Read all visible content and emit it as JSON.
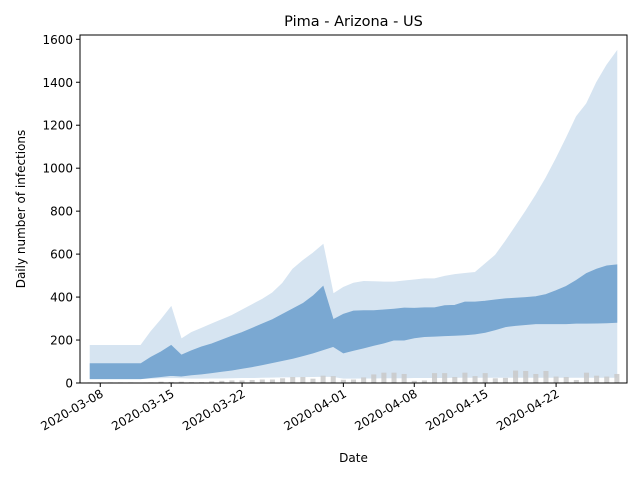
{
  "chart_data": {
    "type": "area",
    "title": "Pima - Arizona - US",
    "xlabel": "Date",
    "ylabel": "Daily number of infections",
    "ylim": [
      0,
      1620
    ],
    "yticks": [
      0,
      200,
      400,
      600,
      800,
      1000,
      1200,
      1400,
      1600
    ],
    "xlim": [
      "2020-03-06",
      "2020-04-29"
    ],
    "xticks": [
      "2020-03-08",
      "2020-03-15",
      "2020-03-22",
      "2020-04-01",
      "2020-04-08",
      "2020-04-15",
      "2020-04-22"
    ],
    "dates": [
      "2020-03-07",
      "2020-03-08",
      "2020-03-09",
      "2020-03-10",
      "2020-03-11",
      "2020-03-12",
      "2020-03-13",
      "2020-03-14",
      "2020-03-15",
      "2020-03-16",
      "2020-03-17",
      "2020-03-18",
      "2020-03-19",
      "2020-03-20",
      "2020-03-21",
      "2020-03-22",
      "2020-03-23",
      "2020-03-24",
      "2020-03-25",
      "2020-03-26",
      "2020-03-27",
      "2020-03-28",
      "2020-03-29",
      "2020-03-30",
      "2020-03-31",
      "2020-04-01",
      "2020-04-02",
      "2020-04-03",
      "2020-04-04",
      "2020-04-05",
      "2020-04-06",
      "2020-04-07",
      "2020-04-08",
      "2020-04-09",
      "2020-04-10",
      "2020-04-11",
      "2020-04-12",
      "2020-04-13",
      "2020-04-14",
      "2020-04-15",
      "2020-04-16",
      "2020-04-17",
      "2020-04-18",
      "2020-04-19",
      "2020-04-20",
      "2020-04-21",
      "2020-04-22",
      "2020-04-23",
      "2020-04-24",
      "2020-04-25",
      "2020-04-26",
      "2020-04-27",
      "2020-04-28"
    ],
    "series": [
      {
        "role": "outer-band",
        "color": "#d6e4f1",
        "lower": [
          20,
          20,
          20,
          20,
          20,
          20,
          22,
          24,
          25,
          24,
          22,
          22,
          23,
          23,
          24,
          25,
          25,
          26,
          27,
          28,
          28,
          29,
          30,
          31,
          30,
          22,
          22,
          23,
          23,
          24,
          24,
          24,
          25,
          25,
          25,
          25,
          26,
          26,
          26,
          26,
          26,
          26,
          26,
          26,
          26,
          26,
          26,
          26,
          26,
          26,
          26,
          26,
          26
        ],
        "upper": [
          175,
          175,
          175,
          175,
          175,
          175,
          240,
          295,
          355,
          205,
          235,
          255,
          275,
          295,
          315,
          340,
          365,
          390,
          420,
          465,
          530,
          570,
          605,
          645,
          415,
          445,
          465,
          473,
          472,
          470,
          470,
          475,
          480,
          485,
          485,
          497,
          505,
          510,
          515,
          555,
          595,
          660,
          730,
          800,
          875,
          955,
          1045,
          1140,
          1240,
          1300,
          1400,
          1480,
          1545
        ]
      },
      {
        "role": "inner-band",
        "color": "#7aa8d2",
        "lower": [
          20,
          20,
          20,
          20,
          20,
          20,
          25,
          30,
          35,
          32,
          38,
          42,
          48,
          54,
          60,
          68,
          76,
          85,
          95,
          105,
          115,
          127,
          140,
          155,
          170,
          140,
          152,
          163,
          175,
          186,
          200,
          200,
          210,
          216,
          218,
          220,
          222,
          224,
          228,
          236,
          248,
          262,
          268,
          272,
          276,
          276,
          276,
          276,
          278,
          278,
          279,
          280,
          282
        ],
        "upper": [
          90,
          90,
          90,
          90,
          90,
          90,
          120,
          145,
          175,
          130,
          150,
          168,
          182,
          200,
          218,
          235,
          255,
          275,
          295,
          320,
          345,
          370,
          405,
          450,
          295,
          320,
          335,
          337,
          337,
          340,
          344,
          349,
          348,
          350,
          350,
          360,
          362,
          377,
          377,
          381,
          387,
          392,
          395,
          398,
          402,
          412,
          430,
          450,
          478,
          510,
          530,
          545,
          550
        ]
      }
    ],
    "bars": {
      "color": "#c9c9c9",
      "values": [
        3,
        3,
        3,
        3,
        3,
        2,
        3,
        6,
        5,
        6,
        4,
        4,
        8,
        10,
        12,
        12,
        14,
        16,
        16,
        22,
        28,
        28,
        20,
        34,
        32,
        15,
        16,
        26,
        40,
        48,
        48,
        42,
        10,
        12,
        46,
        46,
        28,
        48,
        32,
        46,
        22,
        24,
        58,
        56,
        42,
        56,
        30,
        28,
        14,
        48,
        34,
        30,
        42
      ]
    }
  }
}
